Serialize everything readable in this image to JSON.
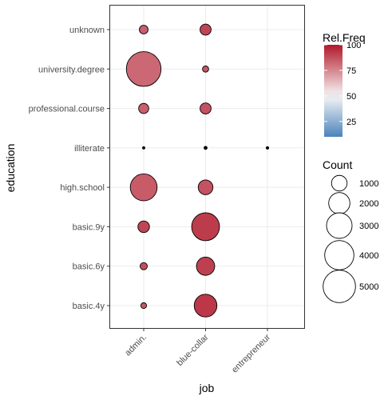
{
  "chart_data": {
    "type": "scatter",
    "xlabel": "job",
    "ylabel": "education",
    "x_categories": [
      "admin.",
      "blue-collar",
      "entrepreneur"
    ],
    "y_categories": [
      "basic.4y",
      "basic.6y",
      "basic.9y",
      "high.school",
      "illiterate",
      "professional.course",
      "university.degree",
      "unknown"
    ],
    "points": [
      {
        "x": "admin.",
        "y": "unknown",
        "count": 250,
        "rel_freq": 84
      },
      {
        "x": "blue-collar",
        "y": "unknown",
        "count": 450,
        "rel_freq": 90
      },
      {
        "x": "admin.",
        "y": "university.degree",
        "count": 5750,
        "rel_freq": 82
      },
      {
        "x": "blue-collar",
        "y": "university.degree",
        "count": 100,
        "rel_freq": 86
      },
      {
        "x": "admin.",
        "y": "professional.course",
        "count": 360,
        "rel_freq": 84
      },
      {
        "x": "blue-collar",
        "y": "professional.course",
        "count": 450,
        "rel_freq": 87
      },
      {
        "x": "admin.",
        "y": "illiterate",
        "count": 1,
        "rel_freq": 50
      },
      {
        "x": "blue-collar",
        "y": "illiterate",
        "count": 8,
        "rel_freq": 50
      },
      {
        "x": "entrepreneur",
        "y": "illiterate",
        "count": 2,
        "rel_freq": 50
      },
      {
        "x": "admin.",
        "y": "high.school",
        "count": 3330,
        "rel_freq": 85
      },
      {
        "x": "blue-collar",
        "y": "high.school",
        "count": 880,
        "rel_freq": 87
      },
      {
        "x": "admin.",
        "y": "basic.9y",
        "count": 500,
        "rel_freq": 90
      },
      {
        "x": "blue-collar",
        "y": "basic.9y",
        "count": 3600,
        "rel_freq": 92
      },
      {
        "x": "admin.",
        "y": "basic.6y",
        "count": 150,
        "rel_freq": 88
      },
      {
        "x": "blue-collar",
        "y": "basic.6y",
        "count": 1430,
        "rel_freq": 91
      },
      {
        "x": "admin.",
        "y": "basic.4y",
        "count": 80,
        "rel_freq": 86
      },
      {
        "x": "blue-collar",
        "y": "basic.4y",
        "count": 2320,
        "rel_freq": 93
      }
    ],
    "color_legend": {
      "title": "Rel.Freq",
      "breaks": [
        25,
        50,
        75,
        100
      ],
      "range": [
        10,
        100
      ],
      "low_color": "#2166ac",
      "mid_color": "#f7f7f7",
      "high_color": "#b2182b",
      "midpoint": 50
    },
    "size_legend": {
      "title": "Count",
      "breaks": [
        1000,
        2000,
        3000,
        4000,
        5000
      ]
    },
    "grid": true,
    "legend_position": "right"
  }
}
